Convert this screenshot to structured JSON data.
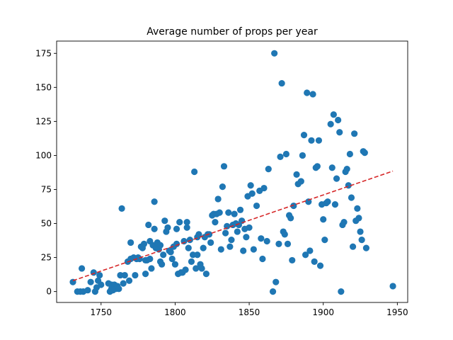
{
  "chart_data": {
    "type": "scatter",
    "title": "Average number of props per year",
    "xlabel": "",
    "ylabel": "",
    "xlim": [
      1720,
      1957
    ],
    "ylim": [
      -8,
      184
    ],
    "xticks": [
      1750,
      1800,
      1850,
      1900,
      1950
    ],
    "yticks": [
      0,
      25,
      50,
      75,
      100,
      125,
      150,
      175
    ],
    "grid": false,
    "point_color": "#1f77b4",
    "trend_color": "#d62728",
    "trendline": {
      "x": [
        1731,
        1947
      ],
      "y": [
        8,
        88.5
      ]
    },
    "points": [
      [
        1731,
        7
      ],
      [
        1734,
        0
      ],
      [
        1736,
        0
      ],
      [
        1737,
        17
      ],
      [
        1738,
        0
      ],
      [
        1741,
        1
      ],
      [
        1743,
        7
      ],
      [
        1745,
        14
      ],
      [
        1746,
        0
      ],
      [
        1747,
        3
      ],
      [
        1748,
        8
      ],
      [
        1749,
        12
      ],
      [
        1750,
        5
      ],
      [
        1755,
        6
      ],
      [
        1756,
        0
      ],
      [
        1757,
        2
      ],
      [
        1757,
        5
      ],
      [
        1758,
        1
      ],
      [
        1759,
        5
      ],
      [
        1760,
        2
      ],
      [
        1761,
        4
      ],
      [
        1762,
        2
      ],
      [
        1763,
        12
      ],
      [
        1764,
        61
      ],
      [
        1765,
        6
      ],
      [
        1766,
        12
      ],
      [
        1768,
        22
      ],
      [
        1769,
        8
      ],
      [
        1770,
        24
      ],
      [
        1770,
        36
      ],
      [
        1772,
        25
      ],
      [
        1773,
        12
      ],
      [
        1774,
        24
      ],
      [
        1775,
        25
      ],
      [
        1776,
        24
      ],
      [
        1777,
        33
      ],
      [
        1778,
        32
      ],
      [
        1779,
        35
      ],
      [
        1780,
        23
      ],
      [
        1780,
        13
      ],
      [
        1781,
        23
      ],
      [
        1782,
        49
      ],
      [
        1783,
        24
      ],
      [
        1783,
        37
      ],
      [
        1784,
        17
      ],
      [
        1785,
        34
      ],
      [
        1786,
        46
      ],
      [
        1786,
        66
      ],
      [
        1787,
        32
      ],
      [
        1788,
        36
      ],
      [
        1789,
        31
      ],
      [
        1790,
        22
      ],
      [
        1790,
        34
      ],
      [
        1791,
        20
      ],
      [
        1792,
        27
      ],
      [
        1793,
        52
      ],
      [
        1794,
        44
      ],
      [
        1795,
        47
      ],
      [
        1796,
        30
      ],
      [
        1797,
        29
      ],
      [
        1798,
        24
      ],
      [
        1799,
        33
      ],
      [
        1800,
        20
      ],
      [
        1801,
        35
      ],
      [
        1801,
        46
      ],
      [
        1802,
        13
      ],
      [
        1803,
        51
      ],
      [
        1804,
        14
      ],
      [
        1805,
        14
      ],
      [
        1806,
        37
      ],
      [
        1807,
        16
      ],
      [
        1808,
        47
      ],
      [
        1808,
        51
      ],
      [
        1809,
        32
      ],
      [
        1810,
        38
      ],
      [
        1811,
        22
      ],
      [
        1812,
        27
      ],
      [
        1813,
        88
      ],
      [
        1814,
        17
      ],
      [
        1815,
        40
      ],
      [
        1815,
        27
      ],
      [
        1816,
        42
      ],
      [
        1817,
        20
      ],
      [
        1818,
        17
      ],
      [
        1819,
        32
      ],
      [
        1820,
        40
      ],
      [
        1821,
        13
      ],
      [
        1822,
        42
      ],
      [
        1823,
        42
      ],
      [
        1824,
        36
      ],
      [
        1825,
        56
      ],
      [
        1826,
        57
      ],
      [
        1827,
        51
      ],
      [
        1828,
        57
      ],
      [
        1829,
        68
      ],
      [
        1830,
        58
      ],
      [
        1831,
        31
      ],
      [
        1832,
        77
      ],
      [
        1833,
        92
      ],
      [
        1834,
        43
      ],
      [
        1835,
        48
      ],
      [
        1836,
        58
      ],
      [
        1837,
        33
      ],
      [
        1838,
        38
      ],
      [
        1839,
        49
      ],
      [
        1840,
        57
      ],
      [
        1841,
        50
      ],
      [
        1842,
        44
      ],
      [
        1843,
        49
      ],
      [
        1844,
        60
      ],
      [
        1845,
        52
      ],
      [
        1846,
        30
      ],
      [
        1847,
        46
      ],
      [
        1848,
        40
      ],
      [
        1849,
        70
      ],
      [
        1850,
        47
      ],
      [
        1851,
        78
      ],
      [
        1852,
        72
      ],
      [
        1853,
        31
      ],
      [
        1855,
        63
      ],
      [
        1857,
        74
      ],
      [
        1858,
        39
      ],
      [
        1859,
        24
      ],
      [
        1860,
        76
      ],
      [
        1862,
        37
      ],
      [
        1863,
        90
      ],
      [
        1866,
        0
      ],
      [
        1867,
        175
      ],
      [
        1868,
        7
      ],
      [
        1870,
        35
      ],
      [
        1871,
        99
      ],
      [
        1872,
        153
      ],
      [
        1873,
        44
      ],
      [
        1874,
        42
      ],
      [
        1875,
        101
      ],
      [
        1876,
        35
      ],
      [
        1877,
        56
      ],
      [
        1878,
        54
      ],
      [
        1879,
        23
      ],
      [
        1880,
        63
      ],
      [
        1882,
        86
      ],
      [
        1883,
        79
      ],
      [
        1885,
        81
      ],
      [
        1886,
        100
      ],
      [
        1887,
        115
      ],
      [
        1888,
        27
      ],
      [
        1889,
        146
      ],
      [
        1890,
        66
      ],
      [
        1891,
        30
      ],
      [
        1892,
        111
      ],
      [
        1893,
        145
      ],
      [
        1894,
        22
      ],
      [
        1895,
        91
      ],
      [
        1896,
        92
      ],
      [
        1897,
        111
      ],
      [
        1898,
        19
      ],
      [
        1899,
        64
      ],
      [
        1900,
        53
      ],
      [
        1901,
        38
      ],
      [
        1902,
        65
      ],
      [
        1903,
        66
      ],
      [
        1905,
        123
      ],
      [
        1906,
        91
      ],
      [
        1907,
        130
      ],
      [
        1908,
        64
      ],
      [
        1909,
        83
      ],
      [
        1910,
        126
      ],
      [
        1911,
        117
      ],
      [
        1912,
        0
      ],
      [
        1913,
        49
      ],
      [
        1914,
        51
      ],
      [
        1915,
        88
      ],
      [
        1916,
        90
      ],
      [
        1917,
        78
      ],
      [
        1918,
        101
      ],
      [
        1919,
        69
      ],
      [
        1920,
        33
      ],
      [
        1921,
        116
      ],
      [
        1922,
        52
      ],
      [
        1923,
        61
      ],
      [
        1924,
        54
      ],
      [
        1925,
        44
      ],
      [
        1926,
        38
      ],
      [
        1927,
        103
      ],
      [
        1928,
        102
      ],
      [
        1929,
        32
      ],
      [
        1947,
        4
      ]
    ]
  }
}
